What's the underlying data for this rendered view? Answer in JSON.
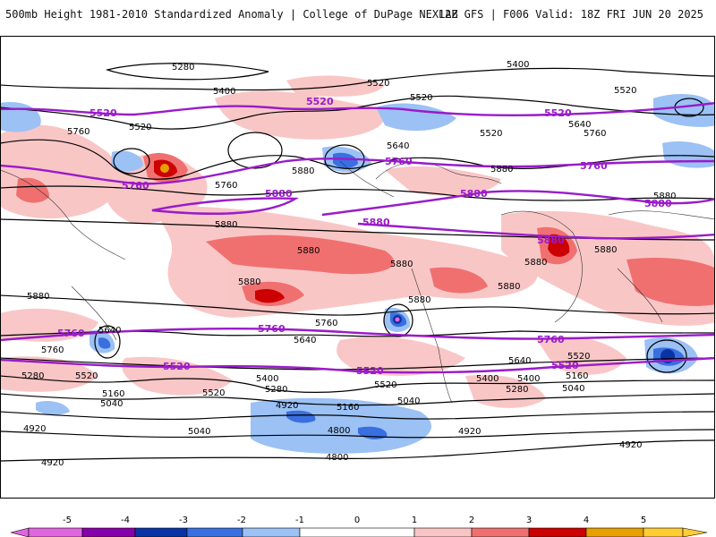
{
  "header": {
    "title_left": "500mb Height 1981-2010 Standardized Anomaly | College of DuPage NEXLAB",
    "title_right": "12Z GFS | F006 Valid: 18Z FRI JUN 20 2025"
  },
  "contour_labels_black": [
    "5280",
    "5400",
    "5520",
    "5520",
    "5520",
    "5400",
    "5520",
    "5640",
    "5520",
    "5760",
    "5760",
    "5640",
    "5880",
    "5760",
    "5880",
    "5880",
    "5880",
    "5880",
    "5880",
    "5880",
    "5880",
    "5880",
    "5880",
    "5880",
    "5880",
    "5760",
    "5640",
    "5640",
    "5520",
    "5760",
    "5640",
    "5400",
    "5520",
    "5280",
    "5160",
    "5040",
    "4920",
    "5280",
    "5400",
    "5520",
    "5400",
    "5520",
    "5280",
    "5160",
    "5040",
    "5040",
    "4920",
    "4920",
    "4800",
    "4800",
    "5040",
    "4920",
    "4920",
    "5040",
    "5160",
    "5280",
    "5400",
    "5520"
  ],
  "contour_labels_purple": [
    "5520",
    "5520",
    "5520",
    "5760",
    "5760",
    "5760",
    "5880",
    "5880",
    "5880",
    "5880",
    "5880",
    "5760",
    "5760",
    "5760",
    "5520",
    "5520",
    "5520"
  ],
  "colorbar": {
    "ticks": [
      "-5",
      "-4",
      "-3",
      "-2",
      "-1",
      "0",
      "1",
      "2",
      "3",
      "4",
      "5"
    ],
    "colors": {
      "lt_m5": "#e066e0",
      "m5_m4": "#8800aa",
      "m4_m3": "#0a33a6",
      "m3_m2": "#3a6fe0",
      "m2_m1": "#9bc1f5",
      "m1_0": "#ffffff",
      "0_1": "#ffffff",
      "1_2": "#f9c4c4",
      "2_3": "#f07070",
      "3_4": "#cc0000",
      "4_5": "#e8a000",
      "gt_5": "#ffcc33"
    }
  }
}
